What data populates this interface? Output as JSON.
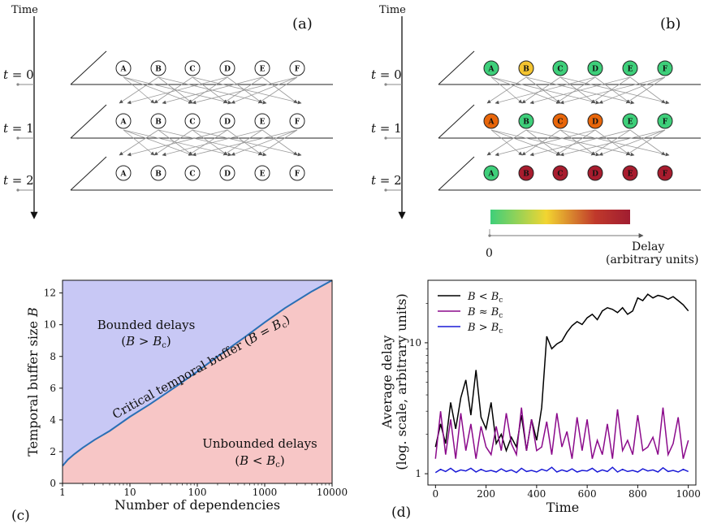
{
  "panel_a": {
    "label": "(a)",
    "time_label": "Time",
    "steps": [
      "t = 0",
      "t = 1",
      "t = 2"
    ],
    "nodes": [
      "A",
      "B",
      "C",
      "D",
      "E",
      "F"
    ]
  },
  "panel_b": {
    "label": "(b)",
    "time_label": "Time",
    "steps": [
      "t = 0",
      "t = 1",
      "t = 2"
    ],
    "nodes": [
      "A",
      "B",
      "C",
      "D",
      "E",
      "F"
    ],
    "node_colors": [
      [
        "#3ecf7a",
        "#f4c430",
        "#3ecf7a",
        "#3ecf7a",
        "#3ecf7a",
        "#3ecf7a"
      ],
      [
        "#e8660a",
        "#3ecf7a",
        "#e8660a",
        "#e8660a",
        "#3ecf7a",
        "#3ecf7a"
      ],
      [
        "#3ecf7a",
        "#a81c2e",
        "#a81c2e",
        "#a81c2e",
        "#a81c2e",
        "#a81c2e"
      ]
    ],
    "colorbar": {
      "gradient": [
        "#3ecf7a",
        "#f2d531",
        "#c0392b",
        "#a01d31"
      ],
      "zero_label": "0",
      "axis_label_1": "Delay",
      "axis_label_2": "(arbitrary units)"
    }
  },
  "panel_c": {
    "label": "(c)",
    "xlabel": "Number of dependencies",
    "ylabel": "Temporal buffer size B",
    "region_bounded_1": "Bounded delays",
    "region_bounded_2": "(B > Bc)",
    "region_unbounded_1": "Unbounded delays",
    "region_unbounded_2": "(B < Bc)",
    "curve_label": "Critical temporal buffer (B = Bc)",
    "colors": {
      "bounded": "#c8c8f5",
      "unbounded": "#f7c6c6",
      "curve": "#2a6fb5"
    }
  },
  "panel_d": {
    "label": "(d)",
    "xlabel": "Time",
    "ylabel_1": "Average delay",
    "ylabel_2": "(log. scale, arbitrary units)",
    "legend": [
      "B < Bc",
      "B ≈ Bc",
      "B > Bc"
    ]
  },
  "chart_data": [
    {
      "type": "area",
      "xlabel": "Number of dependencies",
      "ylabel": "Temporal buffer size B",
      "xscale": "log",
      "xlim": [
        1,
        10000
      ],
      "ylim": [
        0,
        12.8
      ],
      "xticks": [
        "1",
        "10",
        "100",
        "1000",
        "10000"
      ],
      "yticks": [
        "0",
        "2",
        "4",
        "6",
        "8",
        "10",
        "12"
      ],
      "series": [
        {
          "name": "Critical temporal buffer (B = Bc)",
          "x": [
            1,
            1.2,
            1.5,
            2,
            3,
            5,
            10,
            20,
            50,
            100,
            200,
            500,
            1000,
            2000,
            5000,
            10000
          ],
          "y": [
            1.1,
            1.5,
            1.85,
            2.25,
            2.75,
            3.3,
            4.2,
            5.0,
            6.15,
            7.05,
            8.0,
            9.2,
            10.15,
            11.05,
            12.1,
            12.8
          ]
        }
      ],
      "legend_position": "none",
      "grid": false
    },
    {
      "type": "line",
      "xlabel": "Time",
      "ylabel": "Average delay (log. scale, arbitrary units)",
      "yscale": "log",
      "xlim": [
        -30,
        1030
      ],
      "ylim": [
        0.82,
        30
      ],
      "xticks": [
        "0",
        "200",
        "400",
        "600",
        "800",
        "1000"
      ],
      "yticks": [
        "1",
        "10"
      ],
      "legend_position": "top-left",
      "grid": false,
      "series": [
        {
          "name": "B < Bc",
          "color": "#000000",
          "x": [
            0,
            20,
            40,
            60,
            80,
            100,
            120,
            140,
            160,
            180,
            200,
            220,
            240,
            260,
            280,
            300,
            320,
            340,
            360,
            380,
            400,
            420,
            440,
            460,
            480,
            500,
            520,
            540,
            560,
            580,
            600,
            620,
            640,
            660,
            680,
            700,
            720,
            740,
            760,
            780,
            800,
            820,
            840,
            860,
            880,
            900,
            920,
            940,
            960,
            980,
            1000
          ],
          "y": [
            1.6,
            2.4,
            1.7,
            3.5,
            2.2,
            3.8,
            5.2,
            2.8,
            6.2,
            2.7,
            2.2,
            3.5,
            1.7,
            2.0,
            1.5,
            1.9,
            1.6,
            2.8,
            1.5,
            2.6,
            1.8,
            3.2,
            11.2,
            9.0,
            9.8,
            10.3,
            12.0,
            13.5,
            14.5,
            13.8,
            15.5,
            16.5,
            15.0,
            17.5,
            18.5,
            18.0,
            17.0,
            18.5,
            16.5,
            17.5,
            22.0,
            21.0,
            23.5,
            22.0,
            23.0,
            22.5,
            21.5,
            22.5,
            21.0,
            19.5,
            17.5
          ]
        },
        {
          "name": "B ≈ Bc",
          "color": "#8b0a8b",
          "x": [
            0,
            20,
            40,
            60,
            80,
            100,
            120,
            140,
            160,
            180,
            200,
            220,
            240,
            260,
            280,
            300,
            320,
            340,
            360,
            380,
            400,
            420,
            440,
            460,
            480,
            500,
            520,
            540,
            560,
            580,
            600,
            620,
            640,
            660,
            680,
            700,
            720,
            740,
            760,
            780,
            800,
            820,
            840,
            860,
            880,
            900,
            920,
            940,
            960,
            980,
            1000
          ],
          "y": [
            1.3,
            3.0,
            1.4,
            2.6,
            1.3,
            2.9,
            1.5,
            2.4,
            1.3,
            2.3,
            1.6,
            1.4,
            2.3,
            1.5,
            2.9,
            1.7,
            1.4,
            3.2,
            1.5,
            2.6,
            1.5,
            1.6,
            2.5,
            1.4,
            2.9,
            1.6,
            2.1,
            1.3,
            2.7,
            1.5,
            2.6,
            1.3,
            1.8,
            1.4,
            2.4,
            1.3,
            3.1,
            1.5,
            1.8,
            1.4,
            2.8,
            1.5,
            1.6,
            1.9,
            1.4,
            3.2,
            1.4,
            1.7,
            2.7,
            1.3,
            1.8
          ]
        },
        {
          "name": "B > Bc",
          "color": "#1a1ad6",
          "x": [
            0,
            20,
            40,
            60,
            80,
            100,
            120,
            140,
            160,
            180,
            200,
            220,
            240,
            260,
            280,
            300,
            320,
            340,
            360,
            380,
            400,
            420,
            440,
            460,
            480,
            500,
            520,
            540,
            560,
            580,
            600,
            620,
            640,
            660,
            680,
            700,
            720,
            740,
            760,
            780,
            800,
            820,
            840,
            860,
            880,
            900,
            920,
            940,
            960,
            980,
            1000
          ],
          "y": [
            1.02,
            1.08,
            1.04,
            1.1,
            1.03,
            1.07,
            1.05,
            1.1,
            1.03,
            1.08,
            1.04,
            1.06,
            1.03,
            1.09,
            1.04,
            1.07,
            1.02,
            1.1,
            1.04,
            1.06,
            1.03,
            1.08,
            1.05,
            1.12,
            1.03,
            1.07,
            1.04,
            1.09,
            1.03,
            1.06,
            1.05,
            1.1,
            1.03,
            1.07,
            1.04,
            1.12,
            1.03,
            1.08,
            1.04,
            1.06,
            1.03,
            1.09,
            1.05,
            1.07,
            1.03,
            1.11,
            1.04,
            1.06,
            1.03,
            1.08,
            1.04
          ]
        }
      ]
    }
  ]
}
